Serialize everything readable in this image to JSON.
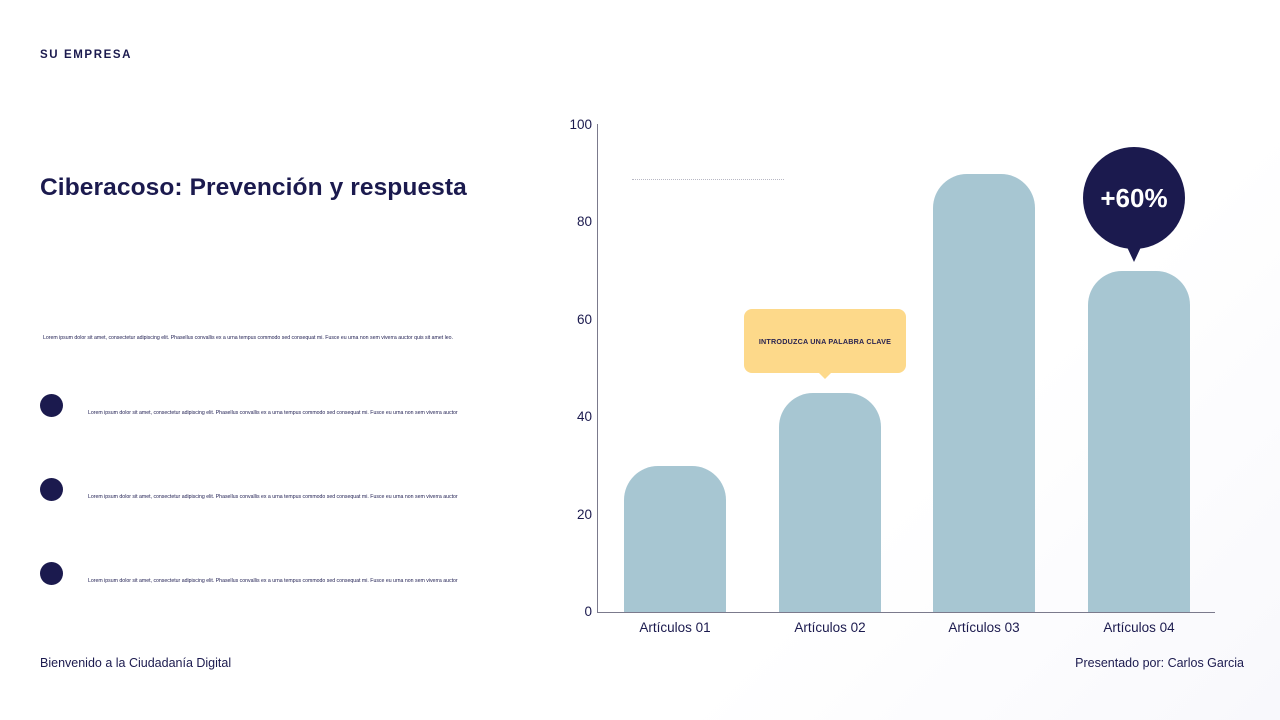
{
  "header": {
    "brand": "SU EMPRESA"
  },
  "title": "Ciberacoso: Prevención y respuesta",
  "intro": "Lorem ipsum dolor sit amet, consectetur adipiscing elit. Phasellus convallis ex a urna tempus commodo sed consequat mi. Fusce eu urna non sem viverra auctor quis sit amet leo.",
  "bullets": [
    {
      "text": "Lorem ipsum dolor sit amet, consectetur adipiscing elit. Phasellus convallis ex a urna tempus commodo sed consequat mi. Fusce eu urna non sem viverra auctor"
    },
    {
      "text": "Lorem ipsum dolor sit amet, consectetur adipiscing elit. Phasellus convallis ex a urna tempus commodo sed consequat mi. Fusce eu urna non sem viverra auctor"
    },
    {
      "text": "Lorem ipsum dolor sit amet, consectetur adipiscing elit. Phasellus convallis ex a urna tempus commodo sed consequat mi. Fusce eu urna non sem viverra auctor"
    }
  ],
  "footer": {
    "left": "Bienvenido a la Ciudadanía Digital",
    "right": "Presentado por: Carlos Garcia"
  },
  "colors": {
    "primary": "#1b1a4e",
    "bar": "#a7c6d2",
    "callout": "#fdd98a",
    "axis": "#7b7a8c"
  },
  "chart_data": {
    "type": "bar",
    "title": "",
    "xlabel": "",
    "ylabel": "",
    "categories": [
      "Artículos 01",
      "Artículos 02",
      "Artículos 03",
      "Artículos 04"
    ],
    "values": [
      30,
      45,
      90,
      70
    ],
    "ylim": [
      0,
      100
    ],
    "yticks": [
      "0",
      "20",
      "40",
      "60",
      "80",
      "100"
    ],
    "grid": false,
    "legend": null,
    "annotations": [
      {
        "type": "callout",
        "text": "INTRODUZCA UNA PALABRA CLAVE",
        "target": "Artículos 02"
      },
      {
        "type": "badge",
        "text": "+60%",
        "target": "Artículos 04"
      }
    ]
  }
}
